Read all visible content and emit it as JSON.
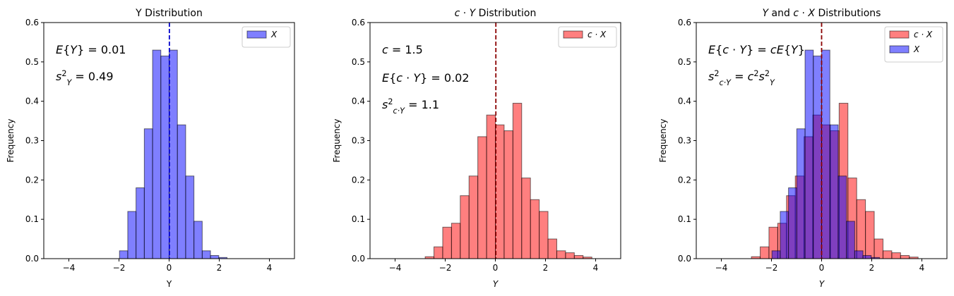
{
  "figure": {
    "colors": {
      "X": "#0000ff",
      "cX": "#ff0000",
      "edge": "#000000",
      "mean_line_1": "#0000cc",
      "mean_line_other": "#8b0000"
    }
  },
  "chart_data": [
    {
      "type": "bar",
      "title": "Y Distribution",
      "xlabel": "Y",
      "ylabel": "Frequency",
      "xlim": [
        -5,
        5
      ],
      "ylim": [
        0,
        0.6
      ],
      "xticks": [
        -4,
        -2,
        0,
        2,
        4
      ],
      "yticks": [
        0.0,
        0.1,
        0.2,
        0.3,
        0.4,
        0.5,
        0.6
      ],
      "grid": false,
      "legend": {
        "position": "top-right",
        "entries": [
          {
            "label": "X",
            "color": "#0000ff"
          }
        ]
      },
      "mean_line_x": 0.01,
      "annotations": [
        "E{Y} = 0.01",
        "s_Y^2 = 0.49"
      ],
      "series": [
        {
          "name": "X",
          "color": "#0000ff",
          "bin_width": 0.33,
          "bin_starts": [
            -1.98,
            -1.65,
            -1.32,
            -0.99,
            -0.66,
            -0.33,
            0.0,
            0.33,
            0.66,
            0.99,
            1.32,
            1.65,
            1.98,
            2.31
          ],
          "values": [
            0.02,
            0.12,
            0.18,
            0.33,
            0.53,
            0.515,
            0.53,
            0.34,
            0.21,
            0.095,
            0.02,
            0.008,
            0.003,
            0.0
          ]
        }
      ]
    },
    {
      "type": "bar",
      "title": "c · Y Distribution",
      "xlabel": "Y",
      "ylabel": "Frequency",
      "xlim": [
        -5,
        5
      ],
      "ylim": [
        0,
        0.6
      ],
      "xticks": [
        -4,
        -2,
        0,
        2,
        4
      ],
      "yticks": [
        0.0,
        0.1,
        0.2,
        0.3,
        0.4,
        0.5,
        0.6
      ],
      "grid": false,
      "legend": {
        "position": "top-right",
        "entries": [
          {
            "label": "c · X",
            "color": "#ff0000"
          }
        ]
      },
      "mean_line_x": 0.02,
      "annotations": [
        "c = 1.5",
        "E{c · Y} = 0.02",
        "s_{c·Y}^2 = 1.1"
      ],
      "series": [
        {
          "name": "c · X",
          "color": "#ff0000",
          "bin_width": 0.35,
          "bin_starts": [
            -2.8,
            -2.45,
            -2.1,
            -1.75,
            -1.4,
            -1.05,
            -0.7,
            -0.35,
            0.0,
            0.35,
            0.7,
            1.05,
            1.4,
            1.75,
            2.1,
            2.45,
            2.8,
            3.15,
            3.5
          ],
          "values": [
            0.005,
            0.03,
            0.08,
            0.09,
            0.16,
            0.21,
            0.31,
            0.365,
            0.34,
            0.325,
            0.395,
            0.205,
            0.15,
            0.12,
            0.05,
            0.02,
            0.015,
            0.008,
            0.004
          ]
        }
      ]
    },
    {
      "type": "bar",
      "title": "Y and c · X Distributions",
      "xlabel": "Y",
      "ylabel": "Frequency",
      "xlim": [
        -5,
        5
      ],
      "ylim": [
        0,
        0.6
      ],
      "xticks": [
        -4,
        -2,
        0,
        2,
        4
      ],
      "yticks": [
        0.0,
        0.1,
        0.2,
        0.3,
        0.4,
        0.5,
        0.6
      ],
      "grid": false,
      "legend": {
        "position": "top-right",
        "entries": [
          {
            "label": "c · X",
            "color": "#ff0000"
          },
          {
            "label": "X",
            "color": "#0000ff"
          }
        ]
      },
      "mean_line_x": 0.0,
      "annotations": [
        "E{c · Y} = cE{Y}",
        "s_{c·Y}^2 = c^2 s_Y^2"
      ],
      "series": [
        {
          "name": "c · X",
          "color": "#ff0000",
          "bin_width": 0.35,
          "bin_starts": [
            -2.8,
            -2.45,
            -2.1,
            -1.75,
            -1.4,
            -1.05,
            -0.7,
            -0.35,
            0.0,
            0.35,
            0.7,
            1.05,
            1.4,
            1.75,
            2.1,
            2.45,
            2.8,
            3.15,
            3.5
          ],
          "values": [
            0.005,
            0.03,
            0.08,
            0.09,
            0.16,
            0.21,
            0.31,
            0.365,
            0.34,
            0.325,
            0.395,
            0.205,
            0.15,
            0.12,
            0.05,
            0.02,
            0.015,
            0.008,
            0.004
          ]
        },
        {
          "name": "X",
          "color": "#0000ff",
          "bin_width": 0.33,
          "bin_starts": [
            -1.98,
            -1.65,
            -1.32,
            -0.99,
            -0.66,
            -0.33,
            0.0,
            0.33,
            0.66,
            0.99,
            1.32,
            1.65,
            1.98,
            2.31
          ],
          "values": [
            0.02,
            0.12,
            0.18,
            0.33,
            0.53,
            0.515,
            0.53,
            0.34,
            0.21,
            0.095,
            0.02,
            0.008,
            0.003,
            0.0
          ]
        }
      ]
    }
  ]
}
